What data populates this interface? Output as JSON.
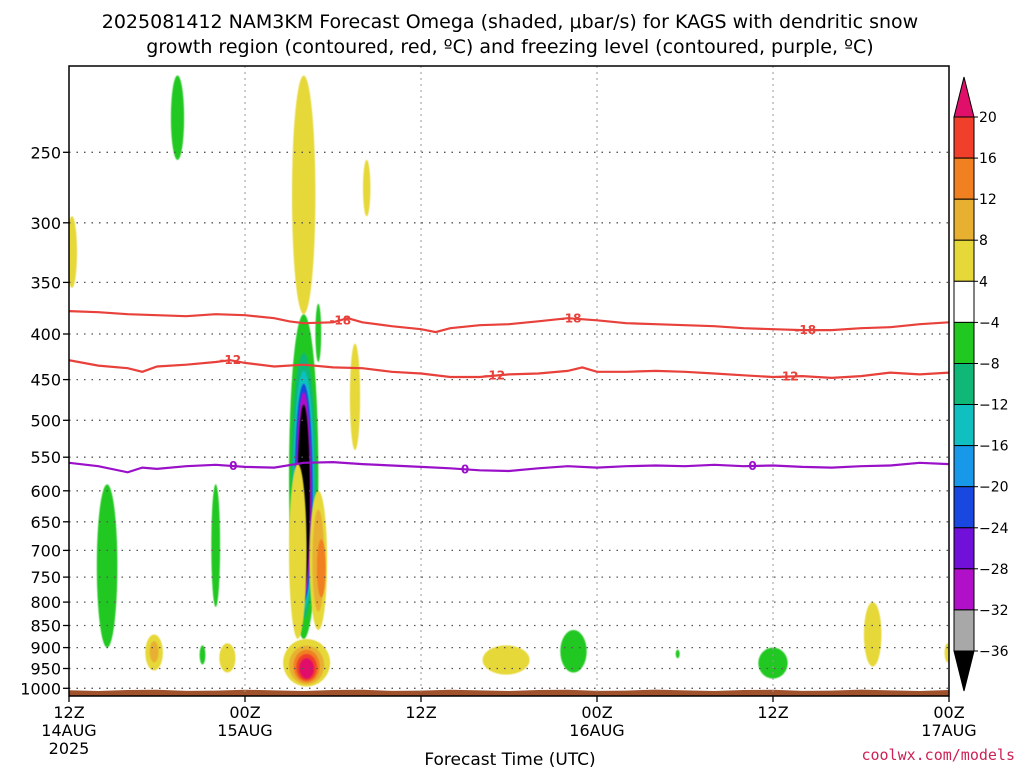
{
  "title": {
    "line1": "2025081412 NAM3KM Forecast Omega (shaded, μbar/s) for KAGS with dendritic snow",
    "line2": "growth region (contoured, red, ºC) and freezing level (contoured, purple, ºC)"
  },
  "credit": "coolwx.com/models",
  "colors": {
    "dsg_contour": "#e8403a",
    "freezing_contour": "#9a10c8",
    "ground": "#a0522d",
    "grid": "#555555"
  },
  "chart_data": {
    "type": "heatmap",
    "xlabel": "Forecast Time (UTC)",
    "ylabel": "",
    "x_ticks": [
      {
        "hour": 0,
        "line1": "12Z",
        "line2": "14AUG",
        "line3": "2025"
      },
      {
        "hour": 12,
        "line1": "00Z",
        "line2": "15AUG",
        "line3": ""
      },
      {
        "hour": 24,
        "line1": "12Z",
        "line2": "",
        "line3": ""
      },
      {
        "hour": 36,
        "line1": "00Z",
        "line2": "16AUG",
        "line3": ""
      },
      {
        "hour": 48,
        "line1": "12Z",
        "line2": "",
        "line3": ""
      },
      {
        "hour": 60,
        "line1": "00Z",
        "line2": "17AUG",
        "line3": ""
      }
    ],
    "xlim": [
      0,
      60
    ],
    "y_ticks": [
      "250",
      "300",
      "350",
      "400",
      "450",
      "500",
      "550",
      "600",
      "650",
      "700",
      "750",
      "800",
      "850",
      "900",
      "950",
      "1000"
    ],
    "y_values": [
      250,
      300,
      350,
      400,
      450,
      500,
      550,
      600,
      650,
      700,
      750,
      800,
      850,
      900,
      950,
      1000
    ],
    "ylim": [
      200,
      1020
    ],
    "y_scale": "log-pressure",
    "ground_top_hpa": 1000,
    "colorbar": {
      "labels": [
        "20",
        "16",
        "12",
        "8",
        "4",
        "−4",
        "−8",
        "−12",
        "−16",
        "−20",
        "−24",
        "−28",
        "−32",
        "−36"
      ],
      "bins": [
        {
          "color": "#e0106a"
        },
        {
          "color": "#f0402c"
        },
        {
          "color": "#f08020"
        },
        {
          "color": "#e8b030"
        },
        {
          "color": "#e6d838"
        },
        {
          "color": "#ffffff"
        },
        {
          "color": "#20c820"
        },
        {
          "color": "#10b878"
        },
        {
          "color": "#10c0c0"
        },
        {
          "color": "#1898e8"
        },
        {
          "color": "#1848e0"
        },
        {
          "color": "#7010d8"
        },
        {
          "color": "#b010c8"
        },
        {
          "color": "#a8a8a8"
        },
        {
          "color": "#000000"
        }
      ]
    },
    "contours": [
      {
        "name": "-18",
        "color": "#e8403a",
        "label": "-18",
        "label_hours": [
          18.5,
          34.2,
          50.2
        ],
        "points": [
          [
            0,
            377
          ],
          [
            2,
            378
          ],
          [
            4,
            380
          ],
          [
            6,
            381
          ],
          [
            8,
            382
          ],
          [
            10,
            380
          ],
          [
            12,
            381
          ],
          [
            14,
            384
          ],
          [
            15,
            387
          ],
          [
            16,
            389
          ],
          [
            18,
            388
          ],
          [
            19,
            384
          ],
          [
            20,
            388
          ],
          [
            22,
            392
          ],
          [
            24,
            395
          ],
          [
            25,
            398
          ],
          [
            26,
            394
          ],
          [
            28,
            391
          ],
          [
            30,
            390
          ],
          [
            32,
            387
          ],
          [
            34,
            384
          ],
          [
            36,
            386
          ],
          [
            38,
            389
          ],
          [
            40,
            390
          ],
          [
            42,
            391
          ],
          [
            44,
            392
          ],
          [
            46,
            394
          ],
          [
            48,
            395
          ],
          [
            50,
            396
          ],
          [
            52,
            396
          ],
          [
            54,
            394
          ],
          [
            56,
            393
          ],
          [
            58,
            390
          ],
          [
            60,
            388
          ]
        ]
      },
      {
        "name": "-12",
        "color": "#e8403a",
        "label": "-12",
        "label_hours": [
          11.0,
          29.0,
          49.0
        ],
        "points": [
          [
            0,
            428
          ],
          [
            2,
            434
          ],
          [
            4,
            437
          ],
          [
            5,
            441
          ],
          [
            6,
            435
          ],
          [
            8,
            433
          ],
          [
            10,
            430
          ],
          [
            11,
            428
          ],
          [
            12,
            431
          ],
          [
            14,
            435
          ],
          [
            16,
            433
          ],
          [
            18,
            436
          ],
          [
            20,
            437
          ],
          [
            22,
            441
          ],
          [
            24,
            443
          ],
          [
            26,
            447
          ],
          [
            28,
            447
          ],
          [
            30,
            444
          ],
          [
            32,
            443
          ],
          [
            34,
            440
          ],
          [
            35,
            436
          ],
          [
            36,
            441
          ],
          [
            38,
            441
          ],
          [
            40,
            440
          ],
          [
            42,
            441
          ],
          [
            44,
            443
          ],
          [
            46,
            445
          ],
          [
            48,
            447
          ],
          [
            50,
            446
          ],
          [
            52,
            448
          ],
          [
            54,
            446
          ],
          [
            56,
            442
          ],
          [
            58,
            444
          ],
          [
            60,
            442
          ]
        ]
      },
      {
        "name": "0",
        "color": "#9a10c8",
        "label": "0",
        "label_hours": [
          11.2,
          27.0,
          46.6
        ],
        "points": [
          [
            0,
            558
          ],
          [
            2,
            563
          ],
          [
            4,
            572
          ],
          [
            5,
            565
          ],
          [
            6,
            567
          ],
          [
            8,
            563
          ],
          [
            10,
            561
          ],
          [
            12,
            564
          ],
          [
            14,
            565
          ],
          [
            16,
            558
          ],
          [
            18,
            557
          ],
          [
            20,
            560
          ],
          [
            22,
            562
          ],
          [
            24,
            564
          ],
          [
            26,
            566
          ],
          [
            28,
            569
          ],
          [
            30,
            570
          ],
          [
            32,
            566
          ],
          [
            34,
            563
          ],
          [
            36,
            565
          ],
          [
            38,
            563
          ],
          [
            40,
            562
          ],
          [
            42,
            563
          ],
          [
            44,
            561
          ],
          [
            46,
            563
          ],
          [
            48,
            562
          ],
          [
            50,
            564
          ],
          [
            52,
            565
          ],
          [
            54,
            563
          ],
          [
            56,
            562
          ],
          [
            58,
            558
          ],
          [
            60,
            560
          ]
        ]
      }
    ],
    "omega_regions": [
      {
        "hour": 16.0,
        "hpa": 620,
        "hour_halfwidth": 1.0,
        "hpa_top": 380,
        "hpa_bottom": 880,
        "omega": -8
      },
      {
        "hour": 16.0,
        "hpa": 615,
        "hour_halfwidth": 0.85,
        "hpa_top": 420,
        "hpa_bottom": 835,
        "omega": -12
      },
      {
        "hour": 16.0,
        "hpa": 612,
        "hour_halfwidth": 0.72,
        "hpa_top": 440,
        "hpa_bottom": 815,
        "omega": -16
      },
      {
        "hour": 16.0,
        "hpa": 610,
        "hour_halfwidth": 0.62,
        "hpa_top": 455,
        "hpa_bottom": 800,
        "omega": -24
      },
      {
        "hour": 16.0,
        "hpa": 610,
        "hour_halfwidth": 0.52,
        "hpa_top": 465,
        "hpa_bottom": 790,
        "omega": -32
      },
      {
        "hour": 16.0,
        "hpa": 610,
        "hour_halfwidth": 0.42,
        "hpa_top": 480,
        "hpa_bottom": 775,
        "omega": -36
      },
      {
        "hour": 16.2,
        "hpa": 940,
        "hour_halfwidth": 1.6,
        "hpa_top": 880,
        "hpa_bottom": 995,
        "omega": 4
      },
      {
        "hour": 16.2,
        "hpa": 940,
        "hour_halfwidth": 1.2,
        "hpa_top": 895,
        "hpa_bottom": 990,
        "omega": 8
      },
      {
        "hour": 16.2,
        "hpa": 943,
        "hour_halfwidth": 0.9,
        "hpa_top": 905,
        "hpa_bottom": 985,
        "omega": 12
      },
      {
        "hour": 16.2,
        "hpa": 945,
        "hour_halfwidth": 0.7,
        "hpa_top": 915,
        "hpa_bottom": 980,
        "omega": 16
      },
      {
        "hour": 16.2,
        "hpa": 947,
        "hour_halfwidth": 0.5,
        "hpa_top": 925,
        "hpa_bottom": 975,
        "omega": 20
      },
      {
        "hour": 15.6,
        "hpa": 640,
        "hour_halfwidth": 0.6,
        "hpa_top": 560,
        "hpa_bottom": 880,
        "omega": 4
      },
      {
        "hour": 17.0,
        "hpa": 720,
        "hour_halfwidth": 0.6,
        "hpa_top": 600,
        "hpa_bottom": 860,
        "omega": 4
      },
      {
        "hour": 17.0,
        "hpa": 720,
        "hour_halfwidth": 0.4,
        "hpa_top": 630,
        "hpa_bottom": 820,
        "omega": 8
      },
      {
        "hour": 17.2,
        "hpa": 740,
        "hour_halfwidth": 0.3,
        "hpa_top": 680,
        "hpa_bottom": 790,
        "omega": 12
      },
      {
        "hour": 16.0,
        "hpa": 275,
        "hour_halfwidth": 0.8,
        "hpa_top": 205,
        "hpa_bottom": 380,
        "omega": 4
      },
      {
        "hour": 19.5,
        "hpa": 465,
        "hour_halfwidth": 0.35,
        "hpa_top": 410,
        "hpa_bottom": 540,
        "omega": 4
      },
      {
        "hour": 20.3,
        "hpa": 270,
        "hour_halfwidth": 0.25,
        "hpa_top": 255,
        "hpa_bottom": 295,
        "omega": 4
      },
      {
        "hour": 17.0,
        "hpa": 400,
        "hour_halfwidth": 0.2,
        "hpa_top": 370,
        "hpa_bottom": 430,
        "omega": -8
      },
      {
        "hour": 0.2,
        "hpa": 320,
        "hour_halfwidth": 0.35,
        "hpa_top": 295,
        "hpa_bottom": 355,
        "omega": 4
      },
      {
        "hour": 2.6,
        "hpa": 700,
        "hour_halfwidth": 0.7,
        "hpa_top": 590,
        "hpa_bottom": 900,
        "omega": -8
      },
      {
        "hour": 7.4,
        "hpa": 225,
        "hour_halfwidth": 0.45,
        "hpa_top": 205,
        "hpa_bottom": 255,
        "omega": -8
      },
      {
        "hour": 10.0,
        "hpa": 680,
        "hour_halfwidth": 0.3,
        "hpa_top": 590,
        "hpa_bottom": 810,
        "omega": -8
      },
      {
        "hour": 5.8,
        "hpa": 905,
        "hour_halfwidth": 0.6,
        "hpa_top": 870,
        "hpa_bottom": 955,
        "omega": 4
      },
      {
        "hour": 5.8,
        "hpa": 905,
        "hour_halfwidth": 0.3,
        "hpa_top": 885,
        "hpa_bottom": 935,
        "omega": 8
      },
      {
        "hour": 9.1,
        "hpa": 915,
        "hour_halfwidth": 0.2,
        "hpa_top": 895,
        "hpa_bottom": 940,
        "omega": -8
      },
      {
        "hour": 10.8,
        "hpa": 920,
        "hour_halfwidth": 0.55,
        "hpa_top": 890,
        "hpa_bottom": 960,
        "omega": 4
      },
      {
        "hour": 29.8,
        "hpa": 925,
        "hour_halfwidth": 1.6,
        "hpa_top": 895,
        "hpa_bottom": 965,
        "omega": 4
      },
      {
        "hour": 34.4,
        "hpa": 910,
        "hour_halfwidth": 0.9,
        "hpa_top": 860,
        "hpa_bottom": 960,
        "omega": -8
      },
      {
        "hour": 41.5,
        "hpa": 915,
        "hour_halfwidth": 0.1,
        "hpa_top": 905,
        "hpa_bottom": 925,
        "omega": -8
      },
      {
        "hour": 48.0,
        "hpa": 950,
        "hour_halfwidth": 1.0,
        "hpa_top": 900,
        "hpa_bottom": 975,
        "omega": -8
      },
      {
        "hour": 54.8,
        "hpa": 880,
        "hour_halfwidth": 0.6,
        "hpa_top": 800,
        "hpa_bottom": 945,
        "omega": 4
      },
      {
        "hour": 59.9,
        "hpa": 910,
        "hour_halfwidth": 0.2,
        "hpa_top": 890,
        "hpa_bottom": 935,
        "omega": 4
      }
    ]
  }
}
